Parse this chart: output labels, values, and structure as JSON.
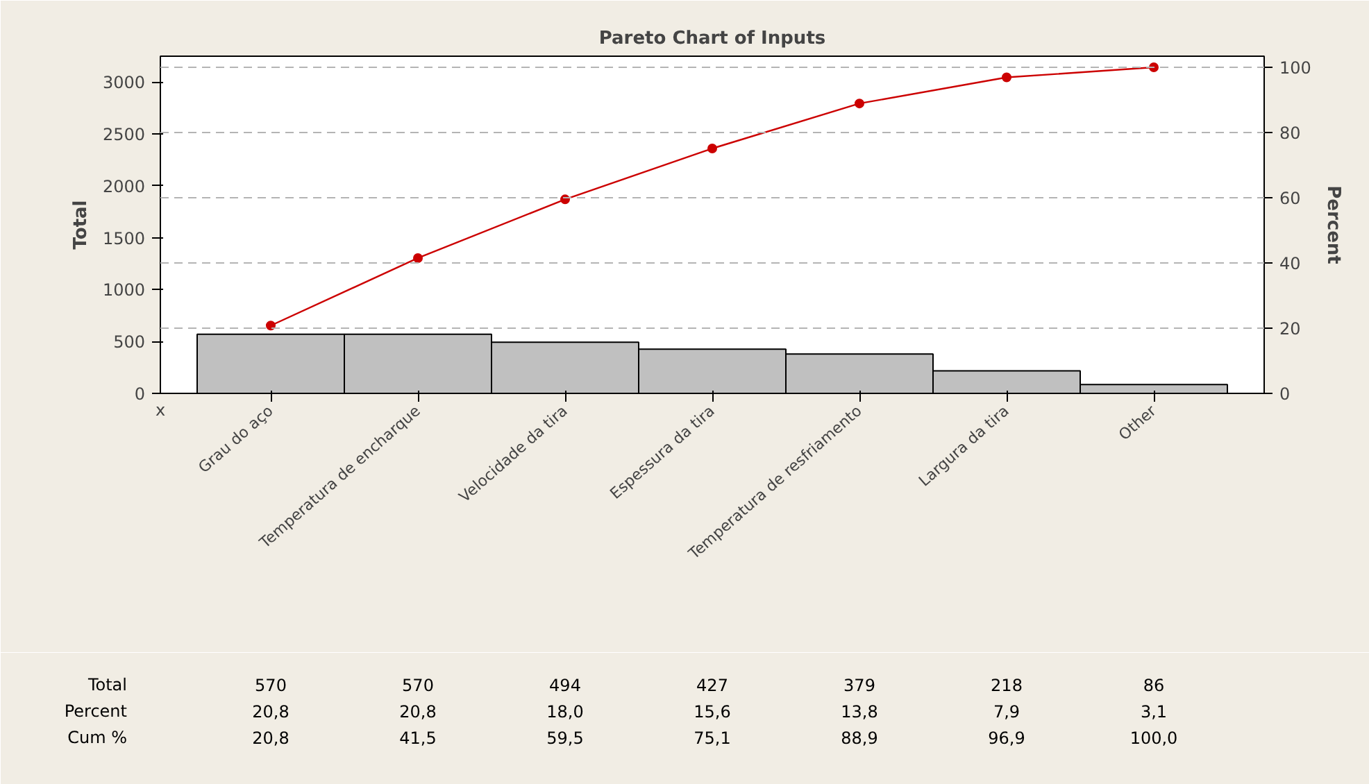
{
  "chart_data": {
    "type": "bar",
    "title": "Pareto Chart of Inputs",
    "xlabel": "x",
    "ylabel": "Total",
    "y2label": "Percent",
    "categories": [
      "Grau do aço",
      "Temperatura de encharque",
      "Velocidade da tira",
      "Espessura da tira",
      "Temperatura de resfriamento",
      "Largura da tira",
      "Other"
    ],
    "series": [
      {
        "color": "#c0c0c0",
        "values": [
          570,
          570,
          494,
          427,
          379,
          218,
          86
        ],
        "value_labels": [
          "570",
          "570",
          "494",
          "427",
          "379",
          "218",
          "86"
        ]
      },
      {
        "type": "line",
        "axis": "y2",
        "color": "#cc0000",
        "values": [
          20.8,
          41.5,
          59.5,
          75.1,
          88.9,
          96.9,
          100.0
        ],
        "value_labels": [
          "20,8",
          "41,5",
          "59,5",
          "75,1",
          "88,9",
          "96,9",
          "100,0"
        ]
      }
    ],
    "marker": "circle",
    "ylim": [
      0,
      3250
    ],
    "yticks": [
      0,
      500,
      1000,
      1500,
      2000,
      2500,
      3000
    ],
    "y2lim": [
      0,
      103.4
    ],
    "y2ticks": [
      0,
      20,
      40,
      60,
      80,
      100
    ],
    "ref_lines": [
      {
        "axis": "y2",
        "value": 20,
        "line_style": "dashed",
        "color": "#b4b4b4"
      },
      {
        "axis": "y2",
        "value": 40,
        "line_style": "dashed",
        "color": "#b4b4b4"
      },
      {
        "axis": "y2",
        "value": 60,
        "line_style": "dashed",
        "color": "#b4b4b4"
      },
      {
        "axis": "y2",
        "value": 80,
        "line_style": "dashed",
        "color": "#b4b4b4"
      },
      {
        "axis": "y2",
        "value": 100,
        "line_style": "dashed",
        "color": "#b4b4b4"
      }
    ],
    "annotations": [
      "Total",
      "Percent",
      "Cum %",
      "20,8",
      "20,8",
      "18,0",
      "15,6",
      "13,8",
      "7,9",
      "3,1"
    ]
  }
}
